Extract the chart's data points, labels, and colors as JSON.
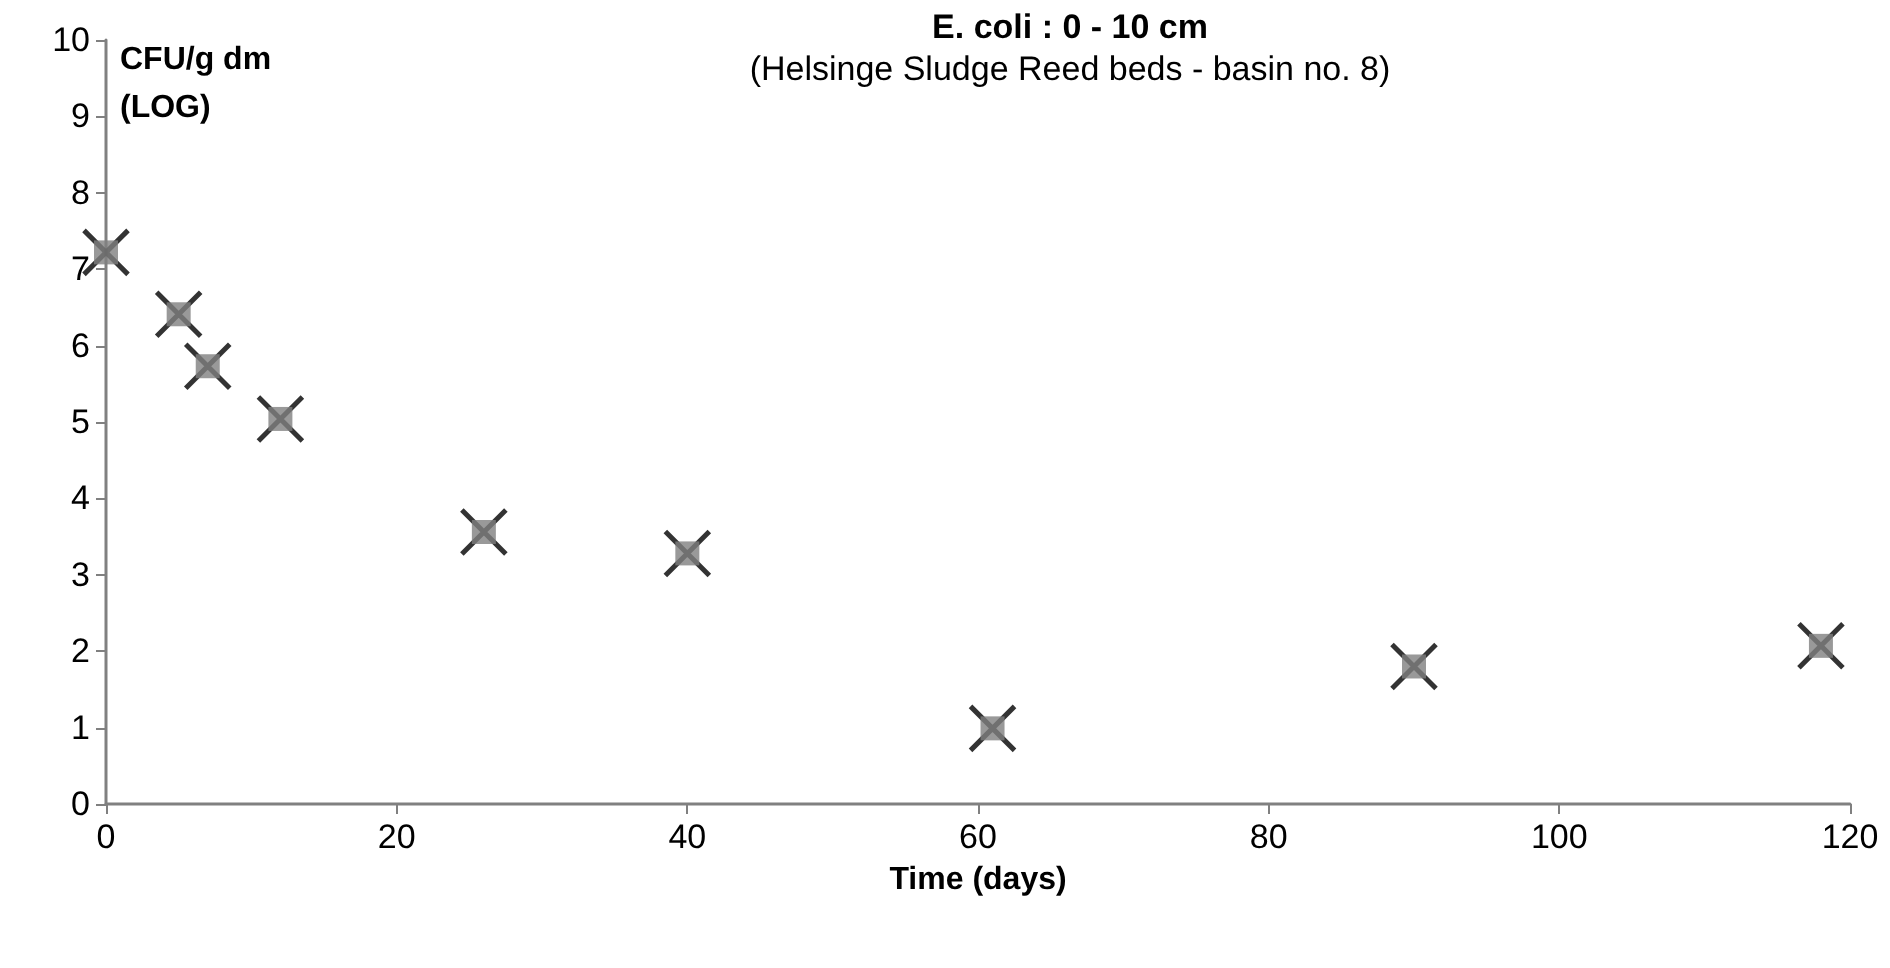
{
  "chart_data": {
    "type": "scatter",
    "title": "E. coli : 0 - 10 cm",
    "subtitle": "(Helsinge Sludge Reed beds - basin no. 8)",
    "xlabel": "Time (days)",
    "ylabel": "CFU/g dm\n(LOG)",
    "x": [
      0,
      5,
      7,
      12,
      26,
      40,
      61,
      90,
      118
    ],
    "series": [
      {
        "color": "#000000",
        "marker": "cross",
        "values": [
          7.22,
          6.41,
          5.73,
          5.04,
          3.56,
          3.28,
          0.99,
          1.8,
          2.07
        ]
      },
      {
        "color": "#808080",
        "marker": "square",
        "values": [
          7.22,
          6.41,
          5.73,
          5.04,
          3.56,
          3.28,
          0.99,
          1.8,
          2.07
        ]
      }
    ],
    "xlim": [
      0,
      120
    ],
    "xticks": [
      0,
      20,
      40,
      60,
      80,
      100,
      120
    ],
    "ylim": [
      0,
      10
    ],
    "yticks": [
      0,
      1,
      2,
      3,
      4,
      5,
      6,
      7,
      8,
      9,
      10
    ]
  }
}
